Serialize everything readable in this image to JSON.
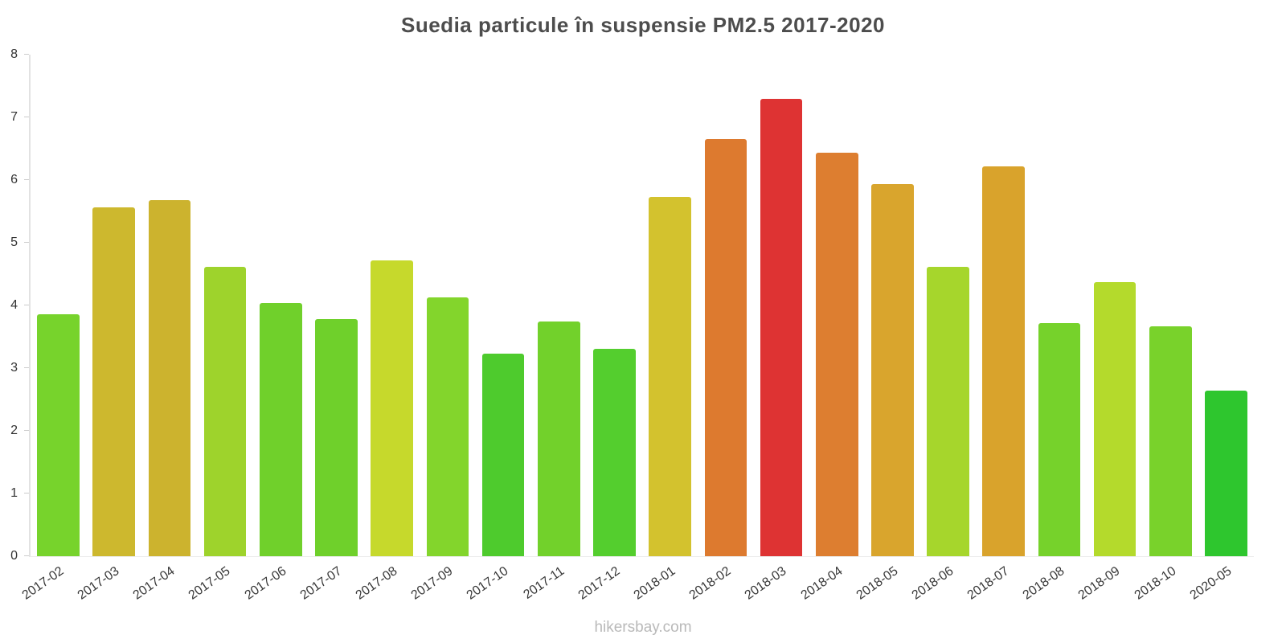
{
  "title": "Suedia particule în suspensie PM2.5 2017-2020",
  "footer": "hikersbay.com",
  "chart_data": {
    "type": "bar",
    "title": "Suedia particule în suspensie PM2.5 2017-2020",
    "categories": [
      "2017-02",
      "2017-03",
      "2017-04",
      "2017-05",
      "2017-06",
      "2017-07",
      "2017-08",
      "2017-09",
      "2017-10",
      "2017-11",
      "2017-12",
      "2018-01",
      "2018-02",
      "2018-03",
      "2018-04",
      "2018-05",
      "2018-06",
      "2018-07",
      "2018-08",
      "2018-09",
      "2018-10",
      "2020-05"
    ],
    "values": [
      3.86,
      5.57,
      5.68,
      4.61,
      4.04,
      3.78,
      4.72,
      4.13,
      3.23,
      3.74,
      3.31,
      5.73,
      6.66,
      7.29,
      6.44,
      5.94,
      4.62,
      6.22,
      3.72,
      4.37,
      3.67,
      2.64
    ],
    "colors": [
      "#77d32c",
      "#cdb82e",
      "#ccb32e",
      "#9ed32c",
      "#70d02b",
      "#6fd02b",
      "#c6d92c",
      "#83d52c",
      "#4ecb2d",
      "#72d12b",
      "#54ce2e",
      "#d3c22e",
      "#dd7a2f",
      "#de3333",
      "#dd7e30",
      "#d9a52d",
      "#a6d62c",
      "#d9a32c",
      "#76d22b",
      "#b4da2c",
      "#79d22b",
      "#2ec62e"
    ],
    "xlabel": "",
    "ylabel": "",
    "ylim": [
      0,
      8
    ],
    "yticks": [
      0,
      1,
      2,
      3,
      4,
      5,
      6,
      7,
      8
    ],
    "grid": false,
    "legend_position": "none",
    "x_tick_rotation_deg": -35,
    "title_color": "#4d4d4d",
    "tick_label_color": "#383838",
    "footer_color": "#b9b9b9"
  }
}
